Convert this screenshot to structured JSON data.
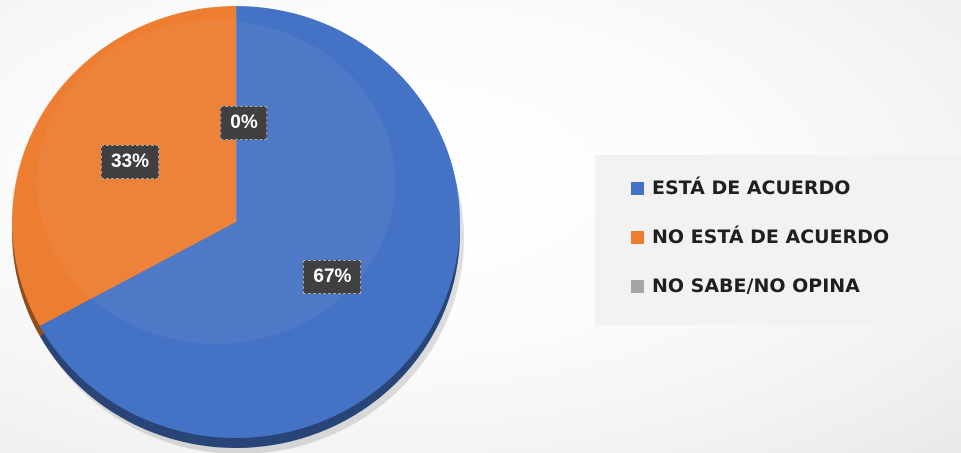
{
  "chart_data": {
    "type": "pie",
    "slices": [
      {
        "name": "ESTÁ DE ACUERDO",
        "value": 67,
        "label": "67%",
        "color": "#4472C4"
      },
      {
        "name": "NO ESTÁ DE ACUERDO",
        "value": 33,
        "label": "33%",
        "color": "#ED7D31"
      },
      {
        "name": "NO SABE/NO OPINA",
        "value": 0,
        "label": "0%",
        "color": "#A5A5A5"
      }
    ],
    "start_angle": "top (12 o'clock), clockwise",
    "legend_position": "right",
    "style": "3d-pie"
  }
}
